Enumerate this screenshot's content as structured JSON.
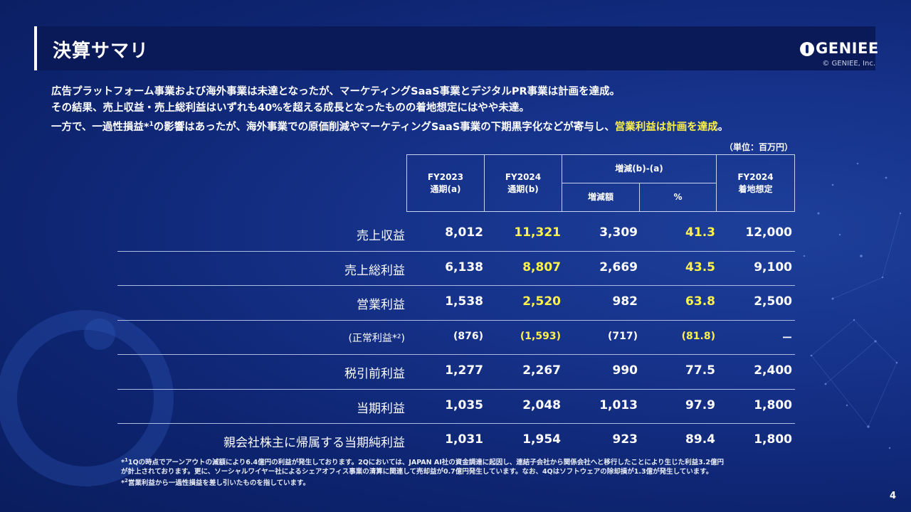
{
  "title": "決算サマリ",
  "logo": {
    "text": "GENIEE",
    "copyright": "© GENIEE, Inc."
  },
  "summary": {
    "line1": "広告プラットフォーム事業および海外事業は未達となったが、マーケティングSaaS事業とデジタルPR事業は計画を達成。",
    "line2": "その結果、売上収益・売上総利益はいずれも40%を超える成長となったものの着地想定にはやや未達。",
    "line3_a": "一方で、一過性損益*",
    "line3_sup": "1",
    "line3_b": "の影響はあったが、海外事業での原価削減やマーケティングSaaS事業の下期黒字化などが寄与し、",
    "line3_highlight": "営業利益は計画を達成",
    "line3_end": "。"
  },
  "unit_label": "（単位：百万円）",
  "table": {
    "headers": {
      "fy2023_top": "FY2023",
      "fy2023_bottom": "通期(a)",
      "fy2024_top": "FY2024",
      "fy2024_bottom": "通期(b)",
      "diff_group": "増減(b)-(a)",
      "diff_amount": "増減額",
      "diff_pct": "%",
      "forecast_top": "FY2024",
      "forecast_bottom": "着地想定"
    },
    "rows": [
      {
        "label": "売上収益",
        "fy2023": "8,012",
        "fy2024": "11,321",
        "diff": "3,309",
        "pct": "41.3",
        "forecast": "12,000"
      },
      {
        "label": "売上総利益",
        "fy2023": "6,138",
        "fy2024": "8,807",
        "diff": "2,669",
        "pct": "43.5",
        "forecast": "9,100"
      },
      {
        "label": "営業利益",
        "fy2023": "1,538",
        "fy2024": "2,520",
        "diff": "982",
        "pct": "63.8",
        "forecast": "2,500"
      },
      {
        "label": "(正常利益*²)",
        "fy2023": "(876)",
        "fy2024": "(1,593)",
        "diff": "(717)",
        "pct": "(81.8)",
        "forecast": "ー"
      },
      {
        "label": "税引前利益",
        "fy2023": "1,277",
        "fy2024": "2,267",
        "diff": "990",
        "pct": "77.5",
        "forecast": "2,400"
      },
      {
        "label": "当期利益",
        "fy2023": "1,035",
        "fy2024": "2,048",
        "diff": "1,013",
        "pct": "97.9",
        "forecast": "1,800"
      },
      {
        "label": "親会社株主に帰属する当期純利益",
        "fy2023": "1,031",
        "fy2024": "1,954",
        "diff": "923",
        "pct": "89.4",
        "forecast": "1,800"
      }
    ]
  },
  "notes": {
    "n1_mark": "*",
    "n1_sup": "1",
    "n1_line1": "1Qの時点でアーンアウトの減額により6.4億円の利益が発生しております。2Qにおいては、JAPAN AI社の資金調達に起因し、連結子会社から関係会社へと移行したことにより生じた利益3.2億円",
    "n1_line2": "が計上されております。更に、ソーシャルワイヤー社によるシェアオフィス事業の清算に関連して売却益が0.7億円発生しています。なお、4Qはソフトウェアの除却損が1.3億が発生しています。",
    "n2_mark": "*",
    "n2_sup": "2",
    "n2_text": "営業利益から一過性損益を差し引いたものを指しています。"
  },
  "page_number": "4",
  "colors": {
    "background": "#0d2470",
    "title_bar": "#0a1a58",
    "highlight": "#fff24a"
  }
}
